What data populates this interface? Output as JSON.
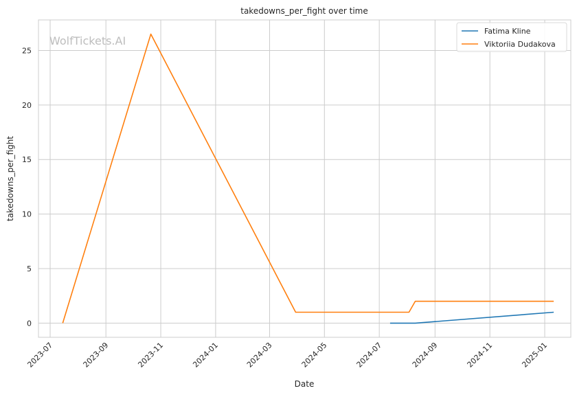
{
  "chart_data": {
    "type": "line",
    "title": "takedowns_per_fight over time",
    "xlabel": "Date",
    "ylabel": "takedowns_per_fight",
    "watermark": "WolfTickets.AI",
    "x_axis": "date",
    "xlim": [
      "2023-06-18",
      "2025-01-30"
    ],
    "ylim": [
      -1.3,
      27.8
    ],
    "x_ticks": [
      "2023-07",
      "2023-09",
      "2023-11",
      "2024-01",
      "2024-03",
      "2024-05",
      "2024-07",
      "2024-09",
      "2024-11",
      "2025-01"
    ],
    "y_ticks": [
      0,
      5,
      10,
      15,
      20,
      25
    ],
    "grid": true,
    "legend_position": "top-right",
    "series": [
      {
        "name": "Fatima Kline",
        "color": "#1f77b4",
        "points": [
          {
            "x": "2024-07-13",
            "y": 0
          },
          {
            "x": "2024-08-10",
            "y": 0
          },
          {
            "x": "2025-01-11",
            "y": 1
          }
        ]
      },
      {
        "name": "Viktoriia Dudakova",
        "color": "#ff7f0e",
        "points": [
          {
            "x": "2023-07-15",
            "y": 0
          },
          {
            "x": "2023-10-21",
            "y": 26.5
          },
          {
            "x": "2024-03-30",
            "y": 1
          },
          {
            "x": "2024-08-03",
            "y": 1
          },
          {
            "x": "2024-08-10",
            "y": 2
          },
          {
            "x": "2025-01-11",
            "y": 2
          }
        ]
      }
    ]
  }
}
